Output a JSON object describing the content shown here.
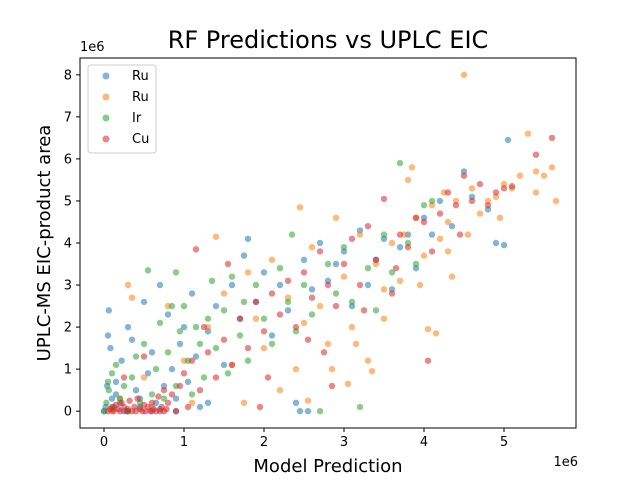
{
  "chart_data": {
    "type": "scatter",
    "title": "RF Predictions vs UPLC EIC",
    "xlabel": "Model Prediction",
    "ylabel": "UPLC-MS EIC-product area",
    "x_offset_label": "1e6",
    "y_offset_label": "1e6",
    "xlim": [
      -0.3,
      5.9
    ],
    "ylim": [
      -0.4,
      8.4
    ],
    "x_ticks": [
      0,
      1,
      2,
      3,
      4,
      5
    ],
    "y_ticks": [
      0,
      1,
      2,
      3,
      4,
      5,
      6,
      7,
      8
    ],
    "x_tick_labels": [
      "0",
      "1",
      "2",
      "3",
      "4",
      "5"
    ],
    "y_tick_labels": [
      "0",
      "1",
      "2",
      "3",
      "4",
      "5",
      "6",
      "7",
      "8"
    ],
    "grid": false,
    "legend_position": "top-left",
    "series": [
      {
        "name": "Ru",
        "color": "#1f77b4",
        "points": [
          [
            0.0,
            0.0
          ],
          [
            0.02,
            0.1
          ],
          [
            0.04,
            0.6
          ],
          [
            0.05,
            1.8
          ],
          [
            0.06,
            2.4
          ],
          [
            0.08,
            1.5
          ],
          [
            0.1,
            0.3
          ],
          [
            0.12,
            0.05
          ],
          [
            0.15,
            0.7
          ],
          [
            0.2,
            0.2
          ],
          [
            0.22,
            1.2
          ],
          [
            0.25,
            0.0
          ],
          [
            0.3,
            2.0
          ],
          [
            0.35,
            1.7
          ],
          [
            0.4,
            0.5
          ],
          [
            0.45,
            0.1
          ],
          [
            0.5,
            2.6
          ],
          [
            0.55,
            0.9
          ],
          [
            0.6,
            1.4
          ],
          [
            0.65,
            0.2
          ],
          [
            0.7,
            3.0
          ],
          [
            0.75,
            0.6
          ],
          [
            0.8,
            2.3
          ],
          [
            0.85,
            1.0
          ],
          [
            0.9,
            0.3
          ],
          [
            0.95,
            1.6
          ],
          [
            1.0,
            2.0
          ],
          [
            1.05,
            0.7
          ],
          [
            1.1,
            2.8
          ],
          [
            1.15,
            1.3
          ],
          [
            1.2,
            0.1
          ],
          [
            1.3,
            1.9
          ],
          [
            1.4,
            2.5
          ],
          [
            1.5,
            1.1
          ],
          [
            1.6,
            3.0
          ],
          [
            1.7,
            2.2
          ],
          [
            1.75,
            3.7
          ],
          [
            1.8,
            4.1
          ],
          [
            1.9,
            2.6
          ],
          [
            2.0,
            3.3
          ],
          [
            2.1,
            1.8
          ],
          [
            2.2,
            3.0
          ],
          [
            2.3,
            2.4
          ],
          [
            2.4,
            0.2
          ],
          [
            2.5,
            3.6
          ],
          [
            2.55,
            0.0
          ],
          [
            2.6,
            2.9
          ],
          [
            2.7,
            4.0
          ],
          [
            2.8,
            3.1
          ],
          [
            2.9,
            3.5
          ],
          [
            3.0,
            3.8
          ],
          [
            3.1,
            2.5
          ],
          [
            3.2,
            4.3
          ],
          [
            3.3,
            3.0
          ],
          [
            3.4,
            3.6
          ],
          [
            3.5,
            4.1
          ],
          [
            3.6,
            2.9
          ],
          [
            3.7,
            3.9
          ],
          [
            3.8,
            4.2
          ],
          [
            3.9,
            3.4
          ],
          [
            4.0,
            4.6
          ],
          [
            4.1,
            4.2
          ],
          [
            4.2,
            5.0
          ],
          [
            4.35,
            4.4
          ],
          [
            4.5,
            5.7
          ],
          [
            4.6,
            5.1
          ],
          [
            4.8,
            4.8
          ],
          [
            4.9,
            4.0
          ],
          [
            5.0,
            3.95
          ],
          [
            5.05,
            6.45
          ],
          [
            0.3,
            0.0
          ],
          [
            0.45,
            0.3
          ],
          [
            0.7,
            0.05
          ],
          [
            0.9,
            0.0
          ],
          [
            1.3,
            0.2
          ],
          [
            0.15,
            0.4
          ],
          [
            0.6,
            0.0
          ],
          [
            2.45,
            0.0
          ]
        ]
      },
      {
        "name": "Ru",
        "color": "#ff7f0e",
        "points": [
          [
            0.1,
            0.0
          ],
          [
            0.2,
            0.3
          ],
          [
            0.3,
            3.0
          ],
          [
            0.35,
            2.7
          ],
          [
            0.5,
            0.8
          ],
          [
            0.8,
            2.5
          ],
          [
            1.0,
            1.2
          ],
          [
            1.1,
            0.2
          ],
          [
            1.3,
            2.0
          ],
          [
            1.4,
            4.15
          ],
          [
            1.5,
            2.8
          ],
          [
            1.6,
            1.1
          ],
          [
            1.8,
            3.3
          ],
          [
            1.9,
            2.2
          ],
          [
            2.0,
            1.5
          ],
          [
            2.1,
            3.6
          ],
          [
            2.2,
            0.5
          ],
          [
            2.3,
            2.7
          ],
          [
            2.4,
            1.0
          ],
          [
            2.45,
            4.85
          ],
          [
            2.5,
            2.1
          ],
          [
            2.55,
            0.25
          ],
          [
            2.6,
            3.9
          ],
          [
            2.7,
            2.5
          ],
          [
            2.8,
            1.6
          ],
          [
            2.9,
            4.6
          ],
          [
            3.0,
            3.2
          ],
          [
            3.05,
            0.65
          ],
          [
            3.1,
            2.0
          ],
          [
            3.2,
            4.2
          ],
          [
            3.3,
            1.2
          ],
          [
            3.35,
            0.95
          ],
          [
            3.4,
            3.5
          ],
          [
            3.5,
            2.9
          ],
          [
            3.6,
            4.0
          ],
          [
            3.7,
            3.1
          ],
          [
            3.75,
            4.2
          ],
          [
            3.8,
            5.5
          ],
          [
            3.85,
            5.8
          ],
          [
            3.9,
            4.6
          ],
          [
            4.0,
            3.7
          ],
          [
            4.05,
            1.95
          ],
          [
            4.1,
            4.9
          ],
          [
            4.15,
            1.85
          ],
          [
            4.2,
            4.1
          ],
          [
            4.25,
            5.2
          ],
          [
            4.3,
            4.5
          ],
          [
            4.35,
            3.2
          ],
          [
            4.4,
            5.0
          ],
          [
            4.5,
            8.0
          ],
          [
            4.55,
            4.2
          ],
          [
            4.6,
            5.3
          ],
          [
            4.7,
            4.7
          ],
          [
            4.8,
            5.0
          ],
          [
            4.9,
            5.1
          ],
          [
            5.0,
            5.4
          ],
          [
            5.1,
            5.3
          ],
          [
            5.2,
            5.6
          ],
          [
            5.3,
            6.6
          ],
          [
            5.4,
            5.7
          ],
          [
            5.5,
            5.6
          ],
          [
            5.6,
            5.8
          ],
          [
            5.65,
            5.0
          ],
          [
            5.4,
            5.2
          ],
          [
            4.95,
            4.6
          ],
          [
            4.3,
            3.8
          ],
          [
            3.95,
            3.0
          ],
          [
            3.5,
            2.2
          ],
          [
            3.15,
            1.6
          ],
          [
            2.85,
            1.0
          ],
          [
            1.75,
            0.2
          ],
          [
            0.6,
            0.1
          ]
        ]
      },
      {
        "name": "Ir",
        "color": "#2ca02c",
        "points": [
          [
            0.0,
            0.0
          ],
          [
            0.03,
            0.2
          ],
          [
            0.06,
            0.5
          ],
          [
            0.1,
            0.9
          ],
          [
            0.12,
            0.1
          ],
          [
            0.15,
            1.1
          ],
          [
            0.2,
            0.3
          ],
          [
            0.25,
            0.6
          ],
          [
            0.3,
            0.0
          ],
          [
            0.35,
            0.8
          ],
          [
            0.4,
            1.3
          ],
          [
            0.45,
            0.2
          ],
          [
            0.5,
            1.6
          ],
          [
            0.55,
            3.35
          ],
          [
            0.6,
            0.4
          ],
          [
            0.65,
            1.0
          ],
          [
            0.7,
            2.1
          ],
          [
            0.75,
            0.3
          ],
          [
            0.8,
            1.4
          ],
          [
            0.85,
            2.5
          ],
          [
            0.9,
            0.6
          ],
          [
            0.95,
            1.9
          ],
          [
            1.0,
            2.5
          ],
          [
            1.05,
            1.2
          ],
          [
            1.1,
            0.4
          ],
          [
            1.15,
            2.0
          ],
          [
            1.2,
            1.6
          ],
          [
            1.25,
            0.8
          ],
          [
            1.3,
            2.2
          ],
          [
            1.35,
            3.1
          ],
          [
            1.4,
            1.5
          ],
          [
            1.5,
            2.4
          ],
          [
            1.55,
            0.9
          ],
          [
            1.6,
            3.2
          ],
          [
            1.7,
            1.8
          ],
          [
            1.75,
            2.6
          ],
          [
            1.8,
            1.2
          ],
          [
            1.9,
            3.0
          ],
          [
            2.0,
            2.2
          ],
          [
            2.1,
            1.6
          ],
          [
            2.2,
            3.4
          ],
          [
            2.3,
            2.6
          ],
          [
            2.35,
            4.2
          ],
          [
            2.4,
            1.9
          ],
          [
            2.5,
            3.0
          ],
          [
            2.6,
            2.3
          ],
          [
            2.7,
            0.0
          ],
          [
            2.8,
            3.5
          ],
          [
            2.9,
            2.8
          ],
          [
            3.0,
            3.9
          ],
          [
            3.1,
            2.6
          ],
          [
            3.2,
            0.1
          ],
          [
            3.3,
            3.4
          ],
          [
            3.4,
            2.4
          ],
          [
            3.5,
            4.2
          ],
          [
            3.6,
            3.3
          ],
          [
            3.7,
            5.9
          ],
          [
            3.8,
            4.0
          ],
          [
            3.9,
            3.5
          ],
          [
            4.0,
            4.9
          ],
          [
            4.1,
            5.0
          ],
          [
            0.9,
            3.3
          ],
          [
            0.05,
            0.7
          ]
        ]
      },
      {
        "name": "Cu",
        "color": "#d62728",
        "points": [
          [
            0.05,
            0.0
          ],
          [
            0.08,
            0.05
          ],
          [
            0.1,
            0.1
          ],
          [
            0.12,
            0.0
          ],
          [
            0.15,
            0.15
          ],
          [
            0.18,
            0.05
          ],
          [
            0.2,
            0.0
          ],
          [
            0.22,
            0.2
          ],
          [
            0.25,
            0.1
          ],
          [
            0.28,
            0.0
          ],
          [
            0.3,
            0.05
          ],
          [
            0.32,
            0.25
          ],
          [
            0.35,
            0.0
          ],
          [
            0.38,
            0.1
          ],
          [
            0.4,
            0.0
          ],
          [
            0.42,
            0.3
          ],
          [
            0.45,
            0.05
          ],
          [
            0.48,
            0.0
          ],
          [
            0.5,
            0.15
          ],
          [
            0.52,
            0.0
          ],
          [
            0.55,
            0.1
          ],
          [
            0.58,
            0.0
          ],
          [
            0.6,
            0.2
          ],
          [
            0.62,
            0.05
          ],
          [
            0.65,
            0.0
          ],
          [
            0.68,
            0.35
          ],
          [
            0.7,
            0.0
          ],
          [
            0.72,
            0.1
          ],
          [
            0.75,
            0.0
          ],
          [
            0.78,
            0.05
          ],
          [
            0.8,
            0.2
          ],
          [
            0.85,
            0.4
          ],
          [
            0.9,
            0.0
          ],
          [
            0.95,
            0.6
          ],
          [
            1.0,
            0.9
          ],
          [
            1.05,
            0.1
          ],
          [
            1.1,
            1.2
          ],
          [
            1.15,
            3.85
          ],
          [
            1.2,
            0.5
          ],
          [
            1.3,
            1.4
          ],
          [
            1.4,
            0.8
          ],
          [
            1.5,
            1.7
          ],
          [
            1.55,
            3.5
          ],
          [
            1.6,
            1.1
          ],
          [
            1.7,
            2.2
          ],
          [
            1.8,
            1.5
          ],
          [
            1.9,
            2.6
          ],
          [
            1.95,
            0.1
          ],
          [
            2.0,
            1.9
          ],
          [
            2.1,
            2.8
          ],
          [
            2.2,
            2.3
          ],
          [
            2.3,
            3.1
          ],
          [
            2.4,
            2.0
          ],
          [
            2.5,
            3.3
          ],
          [
            2.6,
            2.7
          ],
          [
            2.7,
            3.8
          ],
          [
            2.75,
            1.4
          ],
          [
            2.8,
            3.0
          ],
          [
            2.9,
            2.5
          ],
          [
            3.0,
            3.5
          ],
          [
            3.1,
            4.1
          ],
          [
            3.2,
            3.0
          ],
          [
            3.3,
            4.4
          ],
          [
            3.4,
            3.6
          ],
          [
            3.5,
            5.05
          ],
          [
            3.6,
            2.8
          ],
          [
            3.7,
            4.2
          ],
          [
            3.8,
            3.9
          ],
          [
            3.9,
            4.6
          ],
          [
            4.0,
            4.5
          ],
          [
            4.05,
            1.2
          ],
          [
            4.1,
            3.8
          ],
          [
            4.2,
            4.7
          ],
          [
            4.3,
            5.2
          ],
          [
            4.4,
            4.9
          ],
          [
            4.5,
            5.6
          ],
          [
            4.6,
            5.0
          ],
          [
            4.7,
            5.4
          ],
          [
            4.8,
            4.9
          ],
          [
            4.9,
            5.2
          ],
          [
            5.0,
            5.3
          ],
          [
            5.1,
            5.35
          ],
          [
            5.4,
            6.1
          ],
          [
            5.6,
            6.5
          ],
          [
            0.25,
            0.8
          ],
          [
            0.5,
            1.3
          ],
          [
            0.75,
            0.5
          ],
          [
            1.25,
            2.0
          ],
          [
            2.05,
            0.8
          ],
          [
            2.55,
            1.7
          ],
          [
            2.85,
            0.6
          ],
          [
            3.25,
            2.4
          ],
          [
            3.65,
            3.4
          ],
          [
            4.45,
            4.2
          ]
        ]
      }
    ]
  }
}
